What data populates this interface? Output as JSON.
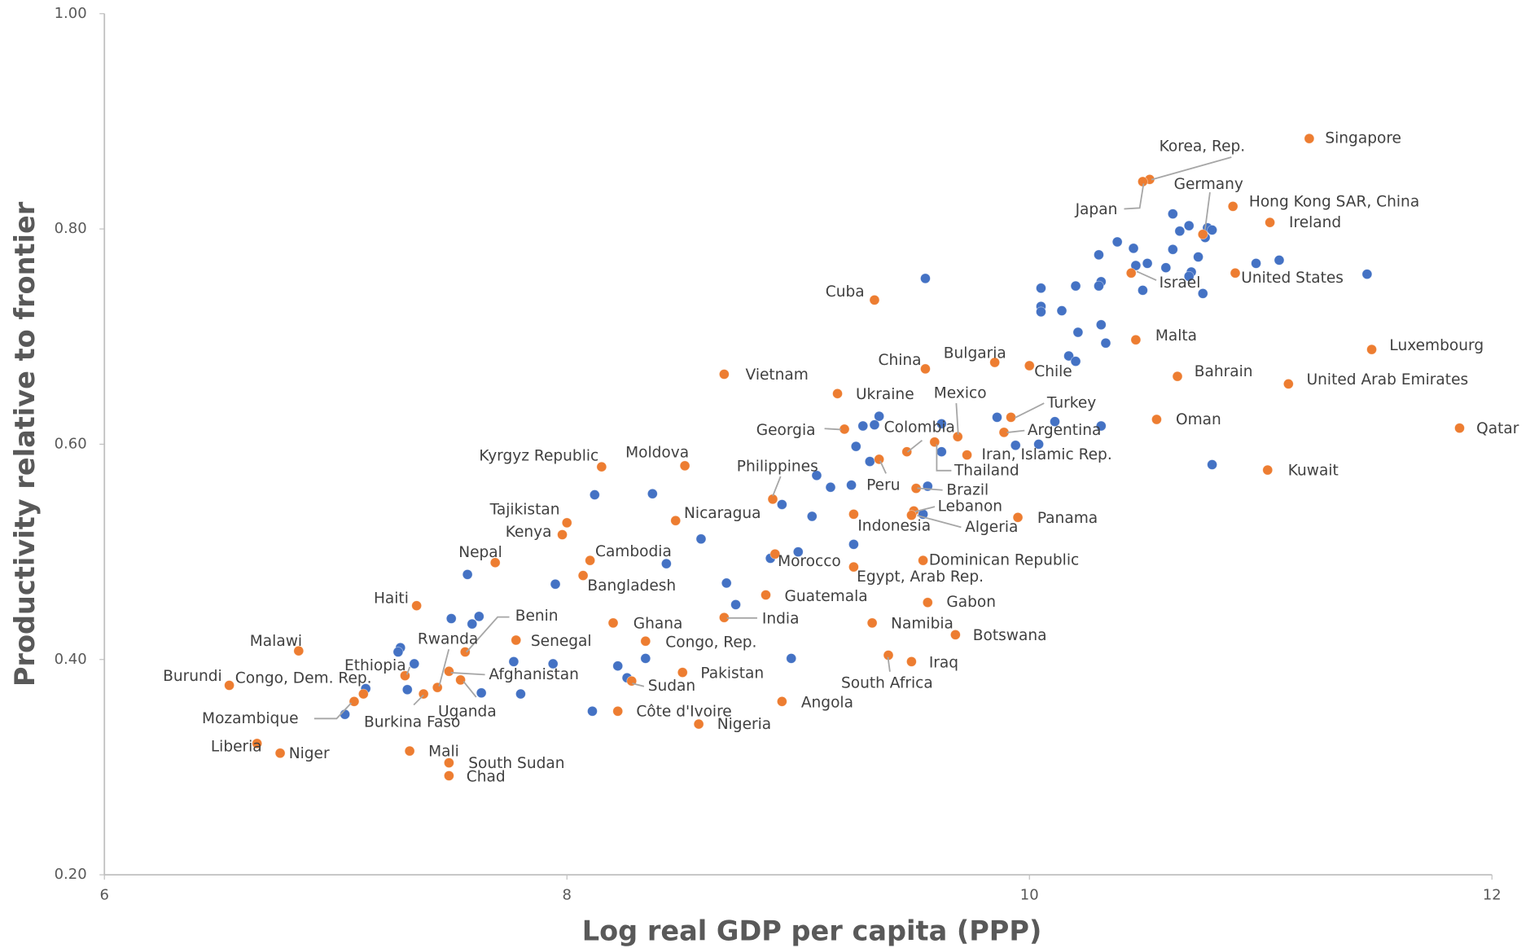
{
  "chart_data": {
    "type": "scatter",
    "x_label": "Log real GDP per capita (PPP)",
    "y_label": "Productivity relative to frontier",
    "xlim": [
      6,
      12
    ],
    "xticks": [
      6,
      8,
      10,
      12
    ],
    "ylim": [
      0.2,
      1.0
    ],
    "yticks": [
      {
        "value": 0.2,
        "label": "0.20"
      },
      {
        "value": 0.4,
        "label": "0.40"
      },
      {
        "value": 0.6,
        "label": "0.60"
      },
      {
        "value": 0.8,
        "label": "0.80"
      },
      {
        "value": 1.0,
        "label": "1.00"
      }
    ],
    "series": [
      {
        "color": "#4472c4",
        "x": [
          9.55,
          10.62,
          10.69,
          10.65,
          10.77,
          10.79,
          10.76,
          10.38,
          10.45,
          10.62,
          10.73,
          10.51,
          10.46,
          10.59,
          10.7,
          10.69,
          10.98,
          11.08,
          11.46,
          10.3,
          10.31,
          10.3,
          10.2,
          10.05,
          10.49,
          10.75,
          10.05,
          10.05,
          10.14,
          10.31,
          10.21,
          10.33,
          10.17,
          10.2,
          10.79,
          10.31,
          10.11,
          10.04,
          9.94,
          9.86,
          9.62,
          9.62,
          9.56,
          9.54,
          9.35,
          9.33,
          9.28,
          9.25,
          9.31,
          9.23,
          9.14,
          9.08,
          9.06,
          9.24,
          9.0,
          8.88,
          8.93,
          8.69,
          8.73,
          8.97,
          8.58,
          8.43,
          8.37,
          8.12,
          7.95,
          7.57,
          7.62,
          7.5,
          7.59,
          7.28,
          7.27,
          7.34,
          7.13,
          7.31,
          7.04,
          7.77,
          7.94,
          7.8,
          7.63,
          8.22,
          8.26,
          8.34,
          8.11
        ],
        "values": [
          0.754,
          0.814,
          0.803,
          0.798,
          0.801,
          0.799,
          0.792,
          0.788,
          0.782,
          0.781,
          0.774,
          0.768,
          0.766,
          0.764,
          0.76,
          0.756,
          0.768,
          0.771,
          0.758,
          0.776,
          0.751,
          0.747,
          0.747,
          0.745,
          0.743,
          0.74,
          0.728,
          0.723,
          0.724,
          0.711,
          0.704,
          0.694,
          0.682,
          0.677,
          0.581,
          0.617,
          0.621,
          0.6,
          0.599,
          0.625,
          0.619,
          0.593,
          0.561,
          0.535,
          0.626,
          0.618,
          0.617,
          0.598,
          0.584,
          0.562,
          0.56,
          0.571,
          0.533,
          0.507,
          0.5,
          0.494,
          0.544,
          0.471,
          0.451,
          0.401,
          0.512,
          0.489,
          0.554,
          0.553,
          0.47,
          0.479,
          0.44,
          0.438,
          0.433,
          0.411,
          0.407,
          0.396,
          0.373,
          0.372,
          0.349,
          0.398,
          0.396,
          0.368,
          0.369,
          0.394,
          0.383,
          0.401,
          0.352
        ]
      },
      {
        "color": "#ed7d31",
        "labels": [
          "Singapore",
          "Korea, Rep.",
          "Japan",
          "Germany",
          "Hong Kong SAR, China",
          "Ireland",
          "Israel",
          "United States",
          "Malta",
          "Luxembourg",
          "Bahrain",
          "United Arab Emirates",
          "Oman",
          "Qatar",
          "Kuwait",
          "Cuba",
          "Bulgaria",
          "Chile",
          "China",
          "Vietnam",
          "Ukraine",
          "Mexico",
          "Turkey",
          "Colombia",
          "Argentina",
          "Georgia",
          "Iran, Islamic Rep.",
          "Thailand",
          "Peru",
          "Brazil",
          "Lebanon",
          "Indonesia",
          "Algeria",
          "Panama",
          "Philippines",
          "Moldova",
          "Kyrgyz Republic",
          "Nicaragua",
          "Tajikistan",
          "Kenya",
          "Cambodia",
          "Bangladesh",
          "Nepal",
          "Morocco",
          "Egypt, Arab Rep.",
          "Dominican Republic",
          "Guatemala",
          "Gabon",
          "India",
          "Namibia",
          "Botswana",
          "Ghana",
          "Congo, Rep.",
          "Haiti",
          "Benin",
          "Senegal",
          "Malawi",
          "Rwanda",
          "South Africa",
          "Iraq",
          "Pakistan",
          "Ethiopia",
          "Afghanistan",
          "Uganda",
          "Burkina Faso",
          "Congo, Dem. Rep.",
          "Mozambique",
          "Burundi",
          "Sudan",
          "Côte d'Ivoire",
          "Angola",
          "Nigeria",
          "Liberia",
          "Niger",
          "Mali",
          "South Sudan",
          "Chad"
        ],
        "x": [
          11.21,
          10.52,
          10.49,
          10.75,
          10.88,
          11.04,
          10.44,
          10.89,
          10.46,
          11.48,
          10.64,
          11.12,
          10.55,
          11.86,
          11.03,
          9.33,
          9.85,
          10.0,
          9.55,
          8.68,
          9.17,
          9.69,
          9.92,
          9.47,
          9.89,
          9.2,
          9.73,
          9.59,
          9.35,
          9.51,
          9.5,
          9.24,
          9.49,
          9.95,
          8.89,
          8.51,
          8.15,
          8.47,
          8.0,
          7.98,
          8.1,
          8.07,
          7.69,
          8.9,
          9.24,
          9.54,
          8.86,
          9.56,
          8.68,
          9.32,
          9.68,
          8.2,
          8.34,
          7.35,
          7.56,
          7.78,
          6.84,
          7.44,
          9.39,
          9.49,
          8.5,
          7.3,
          7.49,
          7.54,
          7.38,
          7.12,
          7.08,
          6.54,
          8.28,
          8.22,
          8.93,
          8.57,
          6.66,
          6.76,
          7.32,
          7.49,
          7.49
        ],
        "values": [
          0.884,
          0.846,
          0.844,
          0.795,
          0.821,
          0.806,
          0.759,
          0.759,
          0.697,
          0.688,
          0.663,
          0.656,
          0.623,
          0.615,
          0.576,
          0.734,
          0.676,
          0.673,
          0.67,
          0.665,
          0.647,
          0.607,
          0.625,
          0.593,
          0.611,
          0.614,
          0.59,
          0.602,
          0.586,
          0.559,
          0.538,
          0.535,
          0.534,
          0.532,
          0.549,
          0.58,
          0.579,
          0.529,
          0.527,
          0.516,
          0.492,
          0.478,
          0.49,
          0.498,
          0.486,
          0.492,
          0.46,
          0.453,
          0.439,
          0.434,
          0.423,
          0.434,
          0.417,
          0.45,
          0.407,
          0.418,
          0.408,
          0.374,
          0.404,
          0.398,
          0.388,
          0.385,
          0.389,
          0.381,
          0.368,
          0.368,
          0.361,
          0.376,
          0.38,
          0.352,
          0.361,
          0.34,
          0.322,
          0.313,
          0.315,
          0.304,
          0.292
        ]
      }
    ]
  }
}
